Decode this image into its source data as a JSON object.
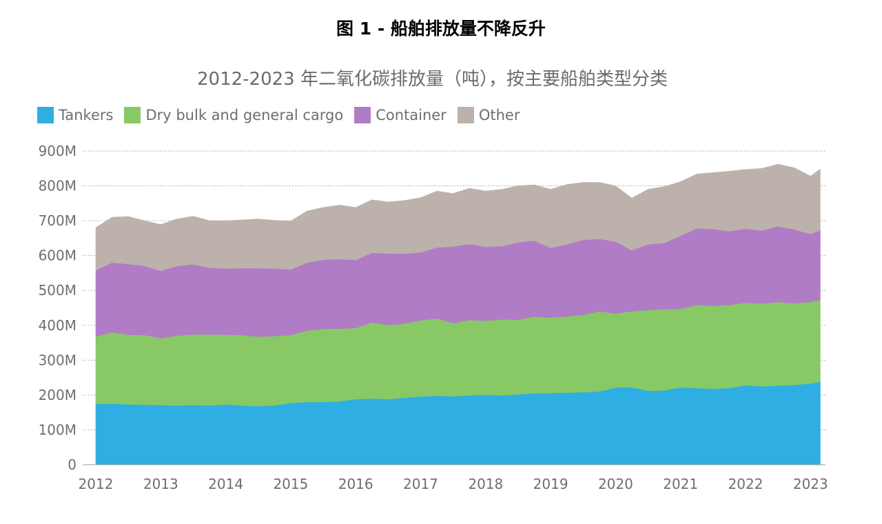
{
  "figure_title": "图 1 - 船舶排放量不降反升",
  "chart_data": {
    "type": "area",
    "stacked": true,
    "title": "2012-2023 年二氧化碳排放量（吨），按主要船舶类型分类",
    "xlabel": "",
    "ylabel": "",
    "x_tick_labels": [
      "2012",
      "2013",
      "2014",
      "2015",
      "2016",
      "2017",
      "2018",
      "2019",
      "2020",
      "2021",
      "2022",
      "2023"
    ],
    "y_tick_labels": [
      "0",
      "100M",
      "200M",
      "300M",
      "400M",
      "500M",
      "600M",
      "700M",
      "800M",
      "900M"
    ],
    "ylim": [
      0,
      900
    ],
    "unit": "M",
    "grid": "horizontal dotted",
    "legend_position": "top-left",
    "x": [
      2012.0,
      2012.25,
      2012.5,
      2012.75,
      2013.0,
      2013.25,
      2013.5,
      2013.75,
      2014.0,
      2014.25,
      2014.5,
      2014.75,
      2015.0,
      2015.25,
      2015.5,
      2015.75,
      2016.0,
      2016.25,
      2016.5,
      2016.75,
      2017.0,
      2017.25,
      2017.5,
      2017.75,
      2018.0,
      2018.25,
      2018.5,
      2018.75,
      2019.0,
      2019.25,
      2019.5,
      2019.75,
      2020.0,
      2020.25,
      2020.5,
      2020.75,
      2021.0,
      2021.25,
      2021.5,
      2021.75,
      2022.0,
      2022.25,
      2022.5,
      2022.75,
      2023.0,
      2023.15
    ],
    "series": [
      {
        "name": "Tankers",
        "color": "#2eaee2",
        "values": [
          175,
          175,
          173,
          172,
          171,
          170,
          171,
          170,
          173,
          170,
          168,
          170,
          177,
          180,
          180,
          182,
          188,
          190,
          188,
          192,
          196,
          198,
          196,
          199,
          201,
          199,
          202,
          205,
          206,
          207,
          208,
          210,
          222,
          222,
          212,
          213,
          222,
          220,
          218,
          220,
          228,
          225,
          227,
          229,
          233,
          238
        ]
      },
      {
        "name": "Dry bulk and general cargo",
        "color": "#88c965",
        "values": [
          193,
          205,
          200,
          200,
          192,
          200,
          203,
          203,
          200,
          202,
          199,
          199,
          195,
          205,
          210,
          208,
          204,
          218,
          213,
          213,
          218,
          222,
          210,
          216,
          212,
          218,
          214,
          220,
          216,
          218,
          222,
          230,
          212,
          218,
          232,
          233,
          225,
          238,
          238,
          238,
          237,
          237,
          240,
          234,
          234,
          235
        ]
      },
      {
        "name": "Container",
        "color": "#b07cc6",
        "values": [
          190,
          200,
          203,
          198,
          193,
          200,
          201,
          192,
          190,
          192,
          197,
          194,
          188,
          195,
          198,
          200,
          195,
          200,
          205,
          200,
          195,
          203,
          220,
          218,
          212,
          210,
          222,
          218,
          200,
          207,
          215,
          208,
          206,
          175,
          188,
          190,
          210,
          220,
          220,
          212,
          212,
          210,
          217,
          212,
          195,
          200
        ]
      },
      {
        "name": "Other",
        "color": "#bcb1ab",
        "values": [
          122,
          130,
          136,
          130,
          133,
          135,
          138,
          135,
          137,
          138,
          141,
          138,
          139,
          148,
          150,
          155,
          151,
          152,
          148,
          153,
          157,
          162,
          152,
          160,
          160,
          163,
          162,
          160,
          168,
          172,
          165,
          162,
          160,
          150,
          158,
          162,
          155,
          156,
          162,
          172,
          170,
          178,
          178,
          177,
          166,
          175
        ]
      }
    ]
  }
}
